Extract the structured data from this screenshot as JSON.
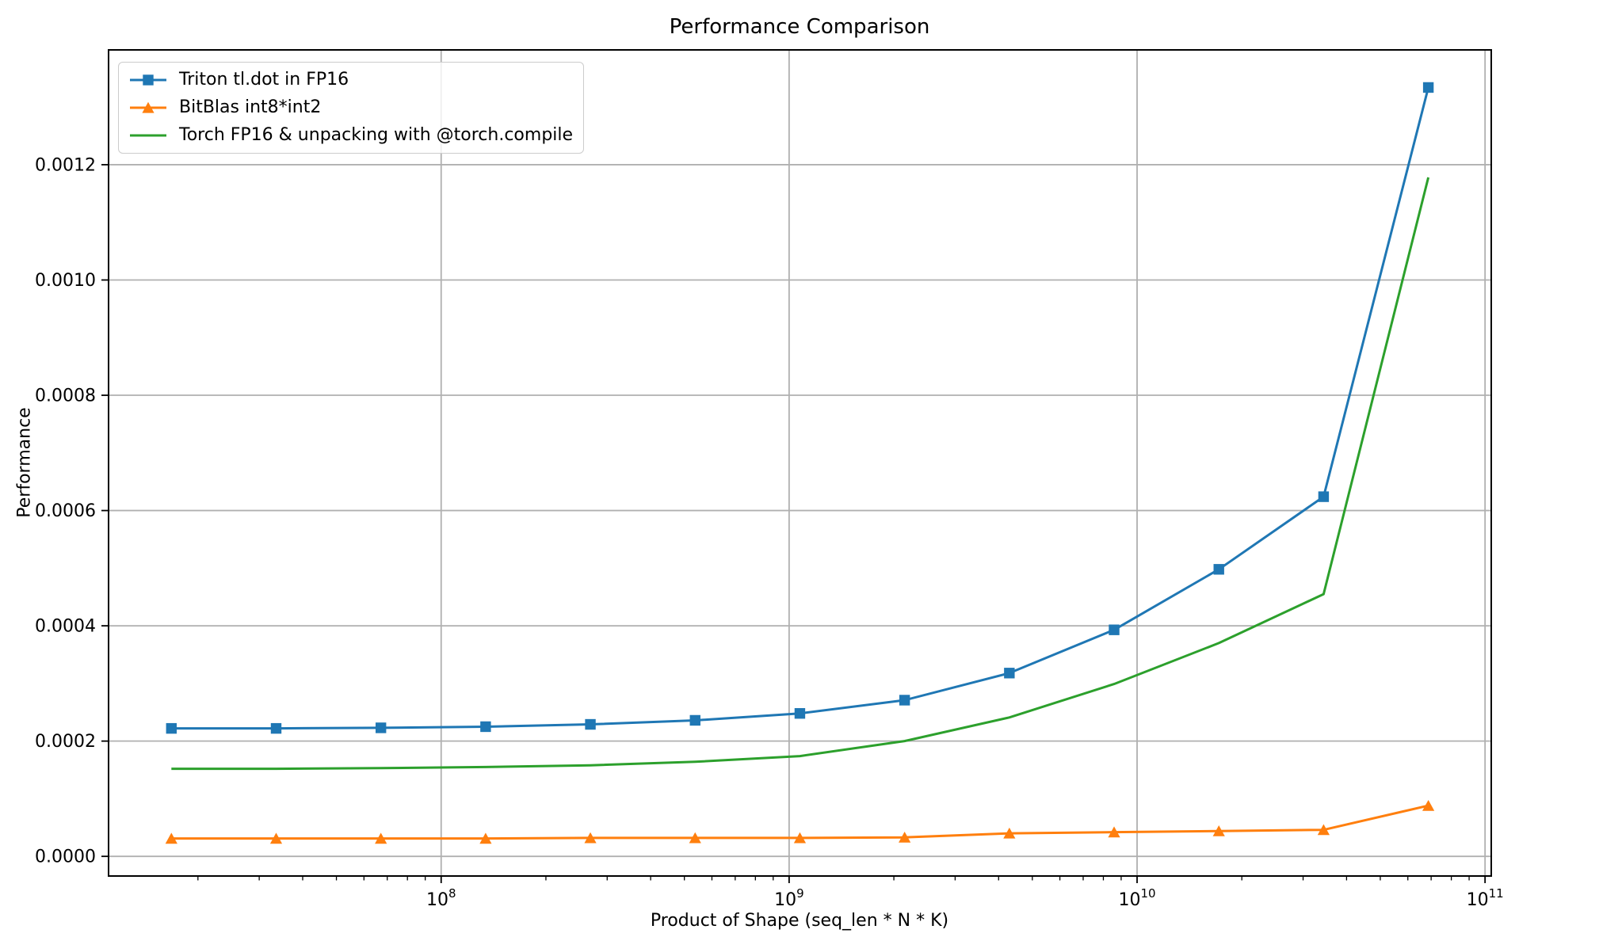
{
  "chart_data": {
    "type": "line",
    "title": "Performance Comparison",
    "xlabel": "Product of Shape (seq_len * N * K)",
    "ylabel": "Performance",
    "x_scale": "log",
    "grid": true,
    "legend_position": "upper-left",
    "grid_color": "#b0b0b0",
    "spine_color": "#000000",
    "text_color": "#000000",
    "background_color": "#ffffff",
    "x_range": [
      11070000,
      104200000000
    ],
    "y_range": [
      -3.41e-05,
      0.0013992
    ],
    "x": [
      16777216,
      33554432,
      67108864,
      134217728,
      268435456,
      536870912,
      1073741824,
      2147483648,
      4294967296,
      8589934592,
      17179869184,
      34359738368,
      68719476736
    ],
    "x_ticks": [
      {
        "value": 100000000,
        "base": "10",
        "exp": "8"
      },
      {
        "value": 1000000000,
        "base": "10",
        "exp": "9"
      },
      {
        "value": 10000000000,
        "base": "10",
        "exp": "10"
      },
      {
        "value": 100000000000,
        "base": "10",
        "exp": "11"
      }
    ],
    "y_ticks": [
      {
        "value": 0.0,
        "label": "0.0000"
      },
      {
        "value": 0.0002,
        "label": "0.0002"
      },
      {
        "value": 0.0004,
        "label": "0.0004"
      },
      {
        "value": 0.0006,
        "label": "0.0006"
      },
      {
        "value": 0.0008,
        "label": "0.0008"
      },
      {
        "value": 0.001,
        "label": "0.0010"
      },
      {
        "value": 0.0012,
        "label": "0.0012"
      }
    ],
    "series": [
      {
        "name": "Triton tl.dot in FP16",
        "color": "#1f77b4",
        "marker": "square",
        "values": [
          0.000222,
          0.000222,
          0.000223,
          0.000225,
          0.000229,
          0.000236,
          0.000248,
          0.000271,
          0.000318,
          0.000393,
          0.000498,
          0.000624,
          0.001334
        ]
      },
      {
        "name": "BitBlas int8*int2",
        "color": "#ff7f0e",
        "marker": "triangle",
        "values": [
          3.1e-05,
          3.1e-05,
          3.1e-05,
          3.1e-05,
          3.2e-05,
          3.2e-05,
          3.2e-05,
          3.3e-05,
          4e-05,
          4.2e-05,
          4.4e-05,
          4.6e-05,
          8.8e-05
        ]
      },
      {
        "name": "Torch FP16 & unpacking with @torch.compile",
        "color": "#2ca02c",
        "marker": "none",
        "values": [
          0.000152,
          0.000152,
          0.000153,
          0.000155,
          0.000158,
          0.000164,
          0.000174,
          0.0002,
          0.000241,
          0.000299,
          0.00037,
          0.000455,
          0.001178
        ]
      }
    ]
  }
}
